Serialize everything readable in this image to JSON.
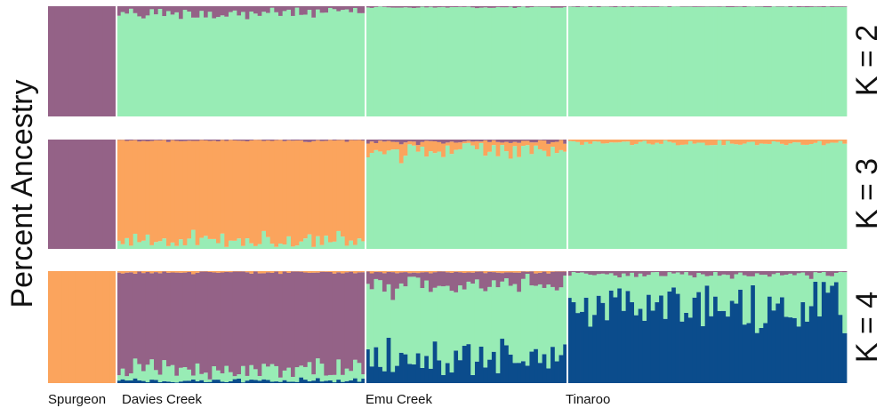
{
  "chart_data": {
    "type": "bar",
    "ylabel": "Percent  Ancestry",
    "colors": {
      "purple": "#946287",
      "green": "#98ECB5",
      "orange": "#FBA45D",
      "blue": "#0B4C8C",
      "divider": "#ffffff"
    },
    "populations": [
      {
        "name": "Spurgeon",
        "individuals": 10
      },
      {
        "name": "Davies Creek",
        "individuals": 60
      },
      {
        "name": "Emu Creek",
        "individuals": 48
      },
      {
        "name": "Tinaroo",
        "individuals": 67
      }
    ],
    "panels": [
      {
        "label": "K = 2",
        "pop_values": [
          {
            "purple": 1.0,
            "green": 0.0
          },
          {
            "purple": 0.06,
            "green": 0.94
          },
          {
            "purple": 0.01,
            "green": 0.99
          },
          {
            "purple": 0.005,
            "green": 0.995
          }
        ]
      },
      {
        "label": "K = 3",
        "pop_values": [
          {
            "purple": 1.0,
            "orange": 0.0,
            "green": 0.0
          },
          {
            "purple": 0.01,
            "orange": 0.92,
            "green": 0.07
          },
          {
            "purple": 0.02,
            "orange": 0.08,
            "green": 0.9
          },
          {
            "purple": 0.0,
            "orange": 0.03,
            "green": 0.97
          }
        ]
      },
      {
        "label": "K = 4",
        "pop_values": [
          {
            "orange": 1.0,
            "purple": 0.0,
            "green": 0.0,
            "blue": 0.0
          },
          {
            "orange": 0.01,
            "purple": 0.87,
            "green": 0.1,
            "blue": 0.02
          },
          {
            "orange": 0.01,
            "purple": 0.1,
            "green": 0.66,
            "blue": 0.23
          },
          {
            "orange": 0.0,
            "purple": 0.03,
            "green": 0.3,
            "blue": 0.67
          }
        ]
      }
    ]
  }
}
